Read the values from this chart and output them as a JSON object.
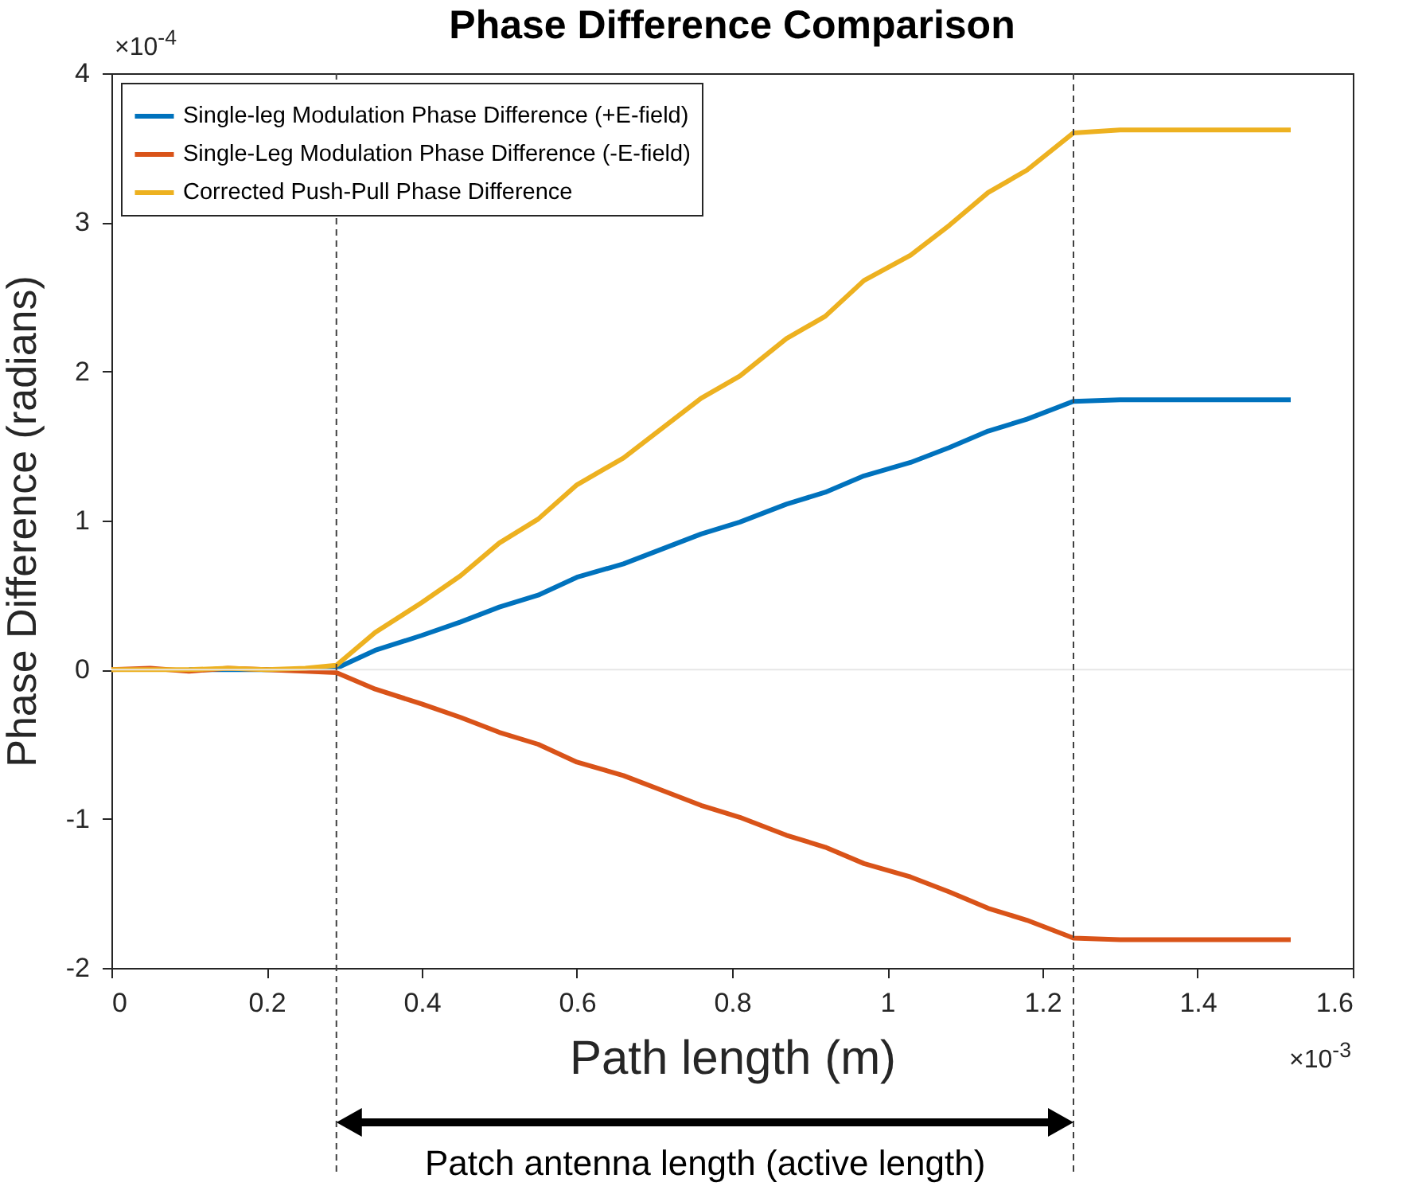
{
  "chart_data": {
    "type": "line",
    "title": "Phase Difference Comparison",
    "xlabel": "Path length (m)",
    "ylabel": "Phase Difference (radians)",
    "x": [
      0,
      0.05,
      0.1,
      0.15,
      0.2,
      0.25,
      0.29,
      0.34,
      0.4,
      0.45,
      0.5,
      0.55,
      0.6,
      0.66,
      0.71,
      0.76,
      0.81,
      0.87,
      0.92,
      0.97,
      1.03,
      1.08,
      1.13,
      1.18,
      1.24,
      1.3,
      1.4,
      1.52
    ],
    "series": [
      {
        "name": "Single-leg Modulation Phase Difference (+E-field)",
        "color": "#0072bd",
        "values": [
          null,
          null,
          0,
          0,
          0,
          0,
          0.01,
          0.13,
          0.23,
          0.32,
          0.42,
          0.5,
          0.62,
          0.71,
          0.81,
          0.91,
          0.99,
          1.11,
          1.19,
          1.3,
          1.39,
          1.49,
          1.6,
          1.68,
          1.8,
          1.81,
          1.81,
          1.81
        ]
      },
      {
        "name": "Single-Leg Modulation Phase Difference (-E-field)",
        "color": "#d95319",
        "values": [
          0,
          0.01,
          -0.01,
          0.01,
          0,
          -0.01,
          -0.02,
          -0.13,
          -0.23,
          -0.32,
          -0.42,
          -0.5,
          -0.62,
          -0.71,
          -0.81,
          -0.91,
          -0.99,
          -1.11,
          -1.19,
          -1.3,
          -1.39,
          -1.49,
          -1.6,
          -1.68,
          -1.8,
          -1.81,
          -1.81,
          -1.81
        ]
      },
      {
        "name": "Corrected Push-Pull Phase Difference",
        "color": "#edb120",
        "values": [
          0,
          0,
          0,
          0.01,
          0,
          0.01,
          0.03,
          0.25,
          0.45,
          0.63,
          0.85,
          1.01,
          1.24,
          1.42,
          1.62,
          1.82,
          1.97,
          2.22,
          2.37,
          2.61,
          2.78,
          2.98,
          3.2,
          3.35,
          3.6,
          3.62,
          3.62,
          3.62
        ]
      }
    ],
    "xlim": [
      0,
      1.6
    ],
    "xticks": [
      0,
      0.2,
      0.4,
      0.6,
      0.8,
      1,
      1.2,
      1.4,
      1.6
    ],
    "ylim": [
      -2,
      4
    ],
    "yticks": [
      -2,
      -1,
      0,
      1,
      2,
      3,
      4
    ],
    "ref_lines": [
      {
        "axis": "y",
        "value": 0,
        "color": "#e6e6e6",
        "line_style": "solid"
      },
      {
        "axis": "x",
        "value": 0.29,
        "color": "#404040",
        "line_style": "dashed"
      },
      {
        "axis": "x",
        "value": 1.24,
        "color": "#404040",
        "line_style": "dashed"
      }
    ],
    "annotations": [
      "×10$^{-4}$",
      "×10$^{-3}$",
      "Patch antenna length (active length)"
    ],
    "legend": "top left",
    "grid": false,
    "marker": "none",
    "line_style": "solid"
  }
}
